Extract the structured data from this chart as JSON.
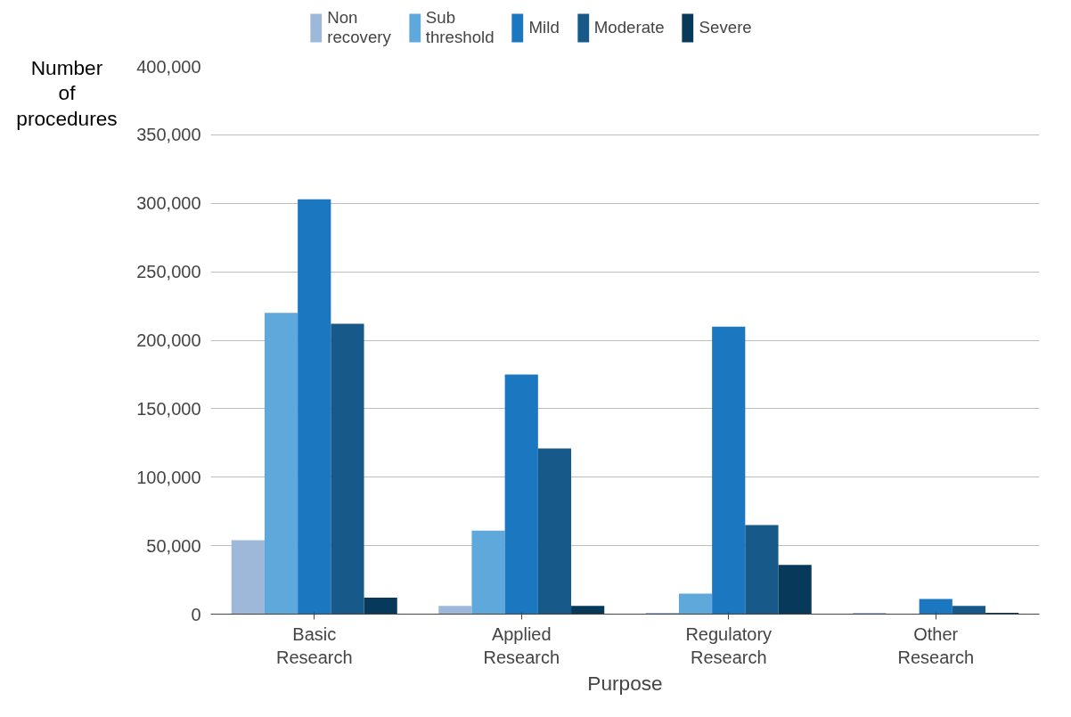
{
  "chart_data": {
    "type": "bar",
    "categories": [
      "Basic\nResearch",
      "Applied\nResearch",
      "Regulatory\nResearch",
      "Other\nResearch"
    ],
    "xlabel": "Purpose",
    "ylabel": "Number\nof\nprocedures",
    "series": [
      {
        "name": "Non\nrecovery",
        "color": "#9eb8d9",
        "values": [
          54000,
          6000,
          1000,
          1000
        ]
      },
      {
        "name": "Sub\nthreshold",
        "color": "#5fa8dc",
        "values": [
          220000,
          61000,
          15000,
          0
        ]
      },
      {
        "name": "Mild",
        "color": "#1a77c0",
        "values": [
          303000,
          175000,
          210000,
          11000
        ]
      },
      {
        "name": "Moderate",
        "color": "#175a89",
        "values": [
          212000,
          121000,
          65000,
          6000
        ]
      },
      {
        "name": "Severe",
        "color": "#06395a",
        "values": [
          12000,
          6000,
          36000,
          1000
        ]
      }
    ],
    "ylim": [
      0,
      400000
    ],
    "yticks": [
      {
        "value": 0,
        "label": "0"
      },
      {
        "value": 50000,
        "label": "50,000"
      },
      {
        "value": 100000,
        "label": "100,000"
      },
      {
        "value": 150000,
        "label": "150,000"
      },
      {
        "value": 200000,
        "label": "200,000"
      },
      {
        "value": 250000,
        "label": "250,000"
      },
      {
        "value": 300000,
        "label": "300,000"
      },
      {
        "value": 350000,
        "label": "350,000"
      },
      {
        "value": 400000,
        "label": "400,000"
      }
    ],
    "grid": "y",
    "legend": "top"
  }
}
